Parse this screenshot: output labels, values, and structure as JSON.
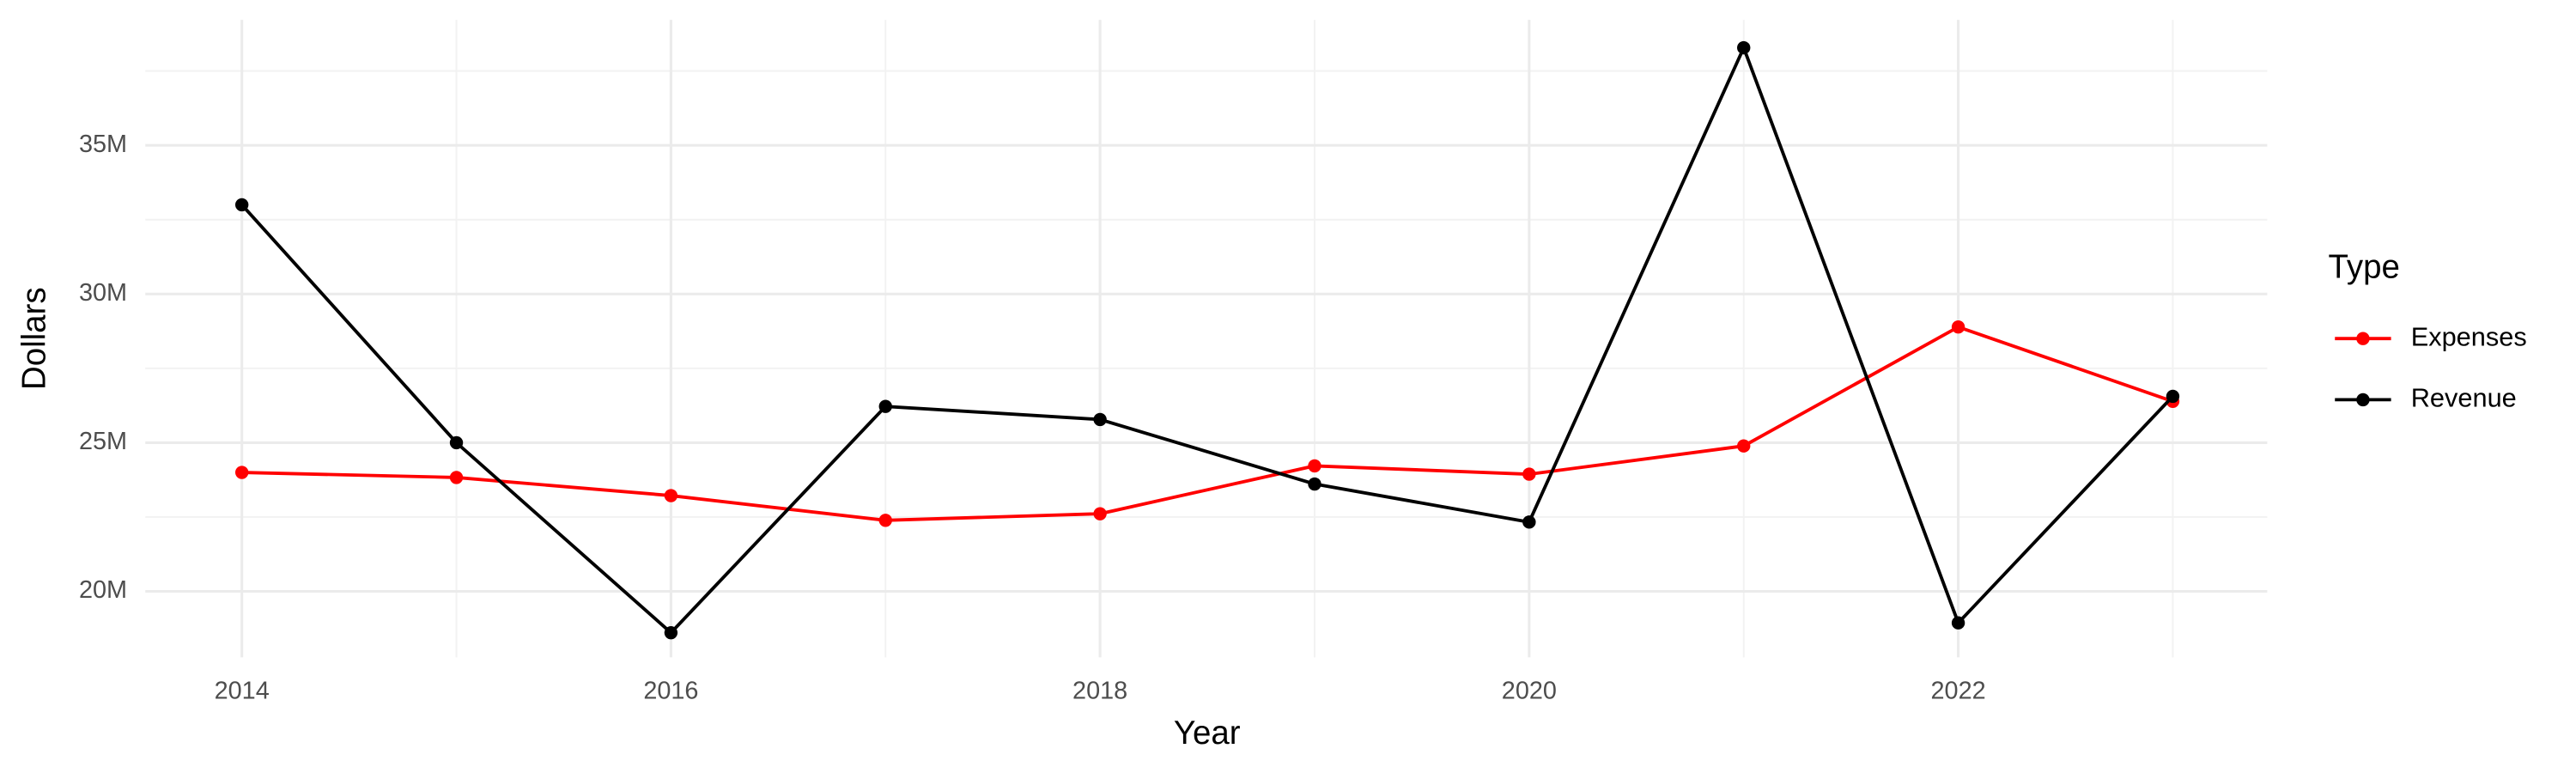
{
  "chart_data": {
    "type": "line",
    "x_label": "Year",
    "y_label": "Dollars",
    "x": [
      2014,
      2015,
      2016,
      2017,
      2018,
      2019,
      2020,
      2021,
      2022,
      2023
    ],
    "series": [
      {
        "name": "Expenses",
        "color": "#ff0000",
        "values": [
          24000000,
          23830000,
          23220000,
          22390000,
          22610000,
          24220000,
          23940000,
          24890000,
          28890000,
          26390000
        ]
      },
      {
        "name": "Revenue",
        "color": "#000000",
        "values": [
          33000000,
          25000000,
          18610000,
          26220000,
          25780000,
          23610000,
          22330000,
          38280000,
          18940000,
          26560000
        ]
      }
    ],
    "xlim": [
      2013.55,
      2023.44
    ],
    "xticks": [
      2014,
      2016,
      2018,
      2020,
      2022
    ],
    "ylim": [
      17780000,
      39220000
    ],
    "yticks": [
      {
        "value": 20000000,
        "label": "20M"
      },
      {
        "value": 25000000,
        "label": "25M"
      },
      {
        "value": 30000000,
        "label": "30M"
      },
      {
        "value": 35000000,
        "label": "35M"
      }
    ],
    "grid": true,
    "legend_title": "Type",
    "legend_position": "right"
  }
}
